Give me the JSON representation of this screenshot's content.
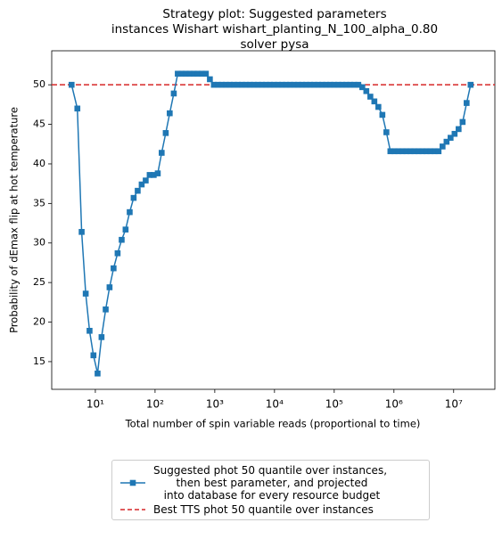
{
  "chart_data": {
    "type": "line",
    "title": "Strategy plot: Suggested parameters\ninstances Wishart wishart_planting_N_100_alpha_0.80\nsolver pysa",
    "xlabel": "Total number of spin variable reads (proportional to time)",
    "ylabel": "Probability of dEmax flip at hot temperature",
    "xscale": "log",
    "xlim": [
      1.86,
      49000000
    ],
    "ylim": [
      11.5,
      54.3
    ],
    "xticks": [
      {
        "value": 10,
        "label": "10¹"
      },
      {
        "value": 100,
        "label": "10²"
      },
      {
        "value": 1000,
        "label": "10³"
      },
      {
        "value": 10000,
        "label": "10⁴"
      },
      {
        "value": 100000,
        "label": "10⁵"
      },
      {
        "value": 1000000,
        "label": "10⁶"
      },
      {
        "value": 10000000,
        "label": "10⁷"
      }
    ],
    "yticks": [
      15,
      20,
      25,
      30,
      35,
      40,
      45,
      50
    ],
    "x": [
      4,
      5,
      5.9,
      6.9,
      8,
      9.3,
      10.9,
      12.7,
      14.9,
      17.3,
      20.2,
      23.6,
      27.6,
      32.1,
      37.6,
      43.8,
      51.2,
      59.7,
      69.7,
      81.3,
      95,
      111,
      129,
      151,
      176,
      206,
      240,
      280,
      327,
      382,
      446,
      520,
      608,
      709,
      828,
      966,
      1128,
      1316,
      1536,
      1793,
      2093,
      2443,
      2852,
      3329,
      3886,
      4536,
      5295,
      6181,
      7215,
      8422,
      9831,
      11475,
      13395,
      15636,
      18252,
      21305,
      24869,
      29030,
      33886,
      39555,
      46173,
      53898,
      62915,
      73441,
      85728,
      100070,
      116810,
      136350,
      159160,
      185790,
      216870,
      253150,
      295500,
      344930,
      402640,
      470000,
      548630,
      640410,
      747550,
      872610,
      1018600,
      1189000,
      1387900,
      1620100,
      1891100,
      2207500,
      2576800,
      3007900,
      3511100,
      4098500,
      4784200,
      5584600,
      6518900,
      7609500,
      8882600,
      10369000,
      12103000,
      14128000,
      16492000,
      19251000
    ],
    "series": [
      {
        "name": "Suggested phot 50 quantile over instances,\n then best parameter, and projected\n into database for every resource budget",
        "color": "#1f77b4",
        "marker": "square",
        "values": [
          50,
          47,
          31.4,
          23.6,
          18.9,
          15.8,
          13.5,
          18.1,
          21.6,
          24.4,
          26.8,
          28.7,
          30.4,
          31.7,
          33.9,
          35.7,
          36.6,
          37.4,
          37.9,
          38.6,
          38.6,
          38.8,
          41.4,
          43.9,
          46.4,
          48.9,
          51.4,
          51.4,
          51.4,
          51.4,
          51.4,
          51.4,
          51.4,
          51.4,
          50.7,
          50,
          50,
          50,
          50,
          50,
          50,
          50,
          50,
          50,
          50,
          50,
          50,
          50,
          50,
          50,
          50,
          50,
          50,
          50,
          50,
          50,
          50,
          50,
          50,
          50,
          50,
          50,
          50,
          50,
          50,
          50,
          50,
          50,
          50,
          50,
          50,
          50,
          49.7,
          49.2,
          48.5,
          47.9,
          47.2,
          46.2,
          44,
          41.6,
          41.6,
          41.6,
          41.6,
          41.6,
          41.6,
          41.6,
          41.6,
          41.6,
          41.6,
          41.6,
          41.6,
          41.6,
          42.2,
          42.8,
          43.3,
          43.8,
          44.4,
          45.3,
          47.7,
          50
        ]
      }
    ],
    "hlines": [
      {
        "name": "Best TTS phot 50 quantile over instances",
        "y": 50,
        "color": "#d62728",
        "style": "dashed"
      }
    ]
  }
}
